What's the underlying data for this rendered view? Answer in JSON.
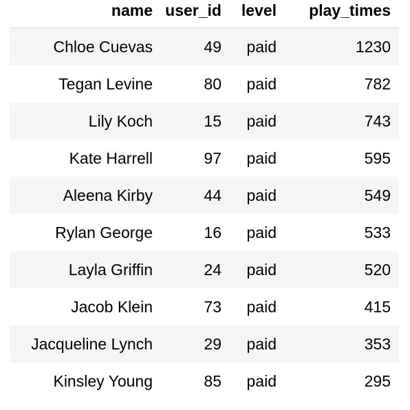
{
  "table": {
    "columns": [
      "name",
      "user_id",
      "level",
      "play_times"
    ],
    "rows": [
      {
        "name": "Chloe Cuevas",
        "user_id": "49",
        "level": "paid",
        "play_times": "1230"
      },
      {
        "name": "Tegan Levine",
        "user_id": "80",
        "level": "paid",
        "play_times": "782"
      },
      {
        "name": "Lily Koch",
        "user_id": "15",
        "level": "paid",
        "play_times": "743"
      },
      {
        "name": "Kate Harrell",
        "user_id": "97",
        "level": "paid",
        "play_times": "595"
      },
      {
        "name": "Aleena Kirby",
        "user_id": "44",
        "level": "paid",
        "play_times": "549"
      },
      {
        "name": "Rylan George",
        "user_id": "16",
        "level": "paid",
        "play_times": "533"
      },
      {
        "name": "Layla Griffin",
        "user_id": "24",
        "level": "paid",
        "play_times": "520"
      },
      {
        "name": "Jacob Klein",
        "user_id": "73",
        "level": "paid",
        "play_times": "415"
      },
      {
        "name": "Jacqueline Lynch",
        "user_id": "29",
        "level": "paid",
        "play_times": "353"
      },
      {
        "name": "Kinsley Young",
        "user_id": "85",
        "level": "paid",
        "play_times": "295"
      }
    ]
  },
  "colors": {
    "stripe": "#f5f5f5",
    "background": "#ffffff",
    "header_rule": "#dcdcdc"
  }
}
